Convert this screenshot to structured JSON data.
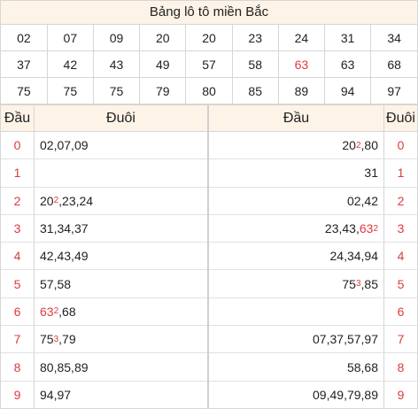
{
  "title": "Bảng lô tô miền Bắc",
  "numbers": [
    [
      "02",
      "07",
      "09",
      "20",
      "20",
      "23",
      "24",
      "31",
      "34"
    ],
    [
      "37",
      "42",
      "43",
      "49",
      "57",
      "58",
      "63",
      "63",
      "68"
    ],
    [
      "75",
      "75",
      "75",
      "79",
      "80",
      "85",
      "89",
      "94",
      "97"
    ]
  ],
  "highlighted": [
    [
      1,
      6
    ]
  ],
  "accent_color": "#e0393e",
  "left": {
    "head_label": "Đầu",
    "tail_label": "Đuôi",
    "rows": [
      {
        "head": "0",
        "items": [
          {
            "v": "02"
          },
          {
            "v": "07"
          },
          {
            "v": "09"
          }
        ]
      },
      {
        "head": "1",
        "items": []
      },
      {
        "head": "2",
        "items": [
          {
            "v": "20",
            "sup": "2"
          },
          {
            "v": "23"
          },
          {
            "v": "24"
          }
        ]
      },
      {
        "head": "3",
        "items": [
          {
            "v": "31"
          },
          {
            "v": "34"
          },
          {
            "v": "37"
          }
        ]
      },
      {
        "head": "4",
        "items": [
          {
            "v": "42"
          },
          {
            "v": "43"
          },
          {
            "v": "49"
          }
        ]
      },
      {
        "head": "5",
        "items": [
          {
            "v": "57"
          },
          {
            "v": "58"
          }
        ]
      },
      {
        "head": "6",
        "items": [
          {
            "v": "63",
            "sup": "2",
            "red": true
          },
          {
            "v": "68"
          }
        ]
      },
      {
        "head": "7",
        "items": [
          {
            "v": "75",
            "sup": "3"
          },
          {
            "v": "79"
          }
        ]
      },
      {
        "head": "8",
        "items": [
          {
            "v": "80"
          },
          {
            "v": "85"
          },
          {
            "v": "89"
          }
        ]
      },
      {
        "head": "9",
        "items": [
          {
            "v": "94"
          },
          {
            "v": "97"
          }
        ]
      }
    ]
  },
  "right": {
    "head_label": "Đầu",
    "tail_label": "Đuôi",
    "rows": [
      {
        "tail": "0",
        "items": [
          {
            "v": "20",
            "sup": "2"
          },
          {
            "v": "80"
          }
        ]
      },
      {
        "tail": "1",
        "items": [
          {
            "v": "31"
          }
        ]
      },
      {
        "tail": "2",
        "items": [
          {
            "v": "02"
          },
          {
            "v": "42"
          }
        ]
      },
      {
        "tail": "3",
        "items": [
          {
            "v": "23"
          },
          {
            "v": "43"
          },
          {
            "v": "63",
            "sup": "2",
            "red": true
          }
        ]
      },
      {
        "tail": "4",
        "items": [
          {
            "v": "24"
          },
          {
            "v": "34"
          },
          {
            "v": "94"
          }
        ]
      },
      {
        "tail": "5",
        "items": [
          {
            "v": "75",
            "sup": "3"
          },
          {
            "v": "85"
          }
        ]
      },
      {
        "tail": "6",
        "items": []
      },
      {
        "tail": "7",
        "items": [
          {
            "v": "07"
          },
          {
            "v": "37"
          },
          {
            "v": "57"
          },
          {
            "v": "97"
          }
        ]
      },
      {
        "tail": "8",
        "items": [
          {
            "v": "58"
          },
          {
            "v": "68"
          }
        ]
      },
      {
        "tail": "9",
        "items": [
          {
            "v": "09"
          },
          {
            "v": "49"
          },
          {
            "v": "79"
          },
          {
            "v": "89"
          }
        ]
      }
    ]
  }
}
